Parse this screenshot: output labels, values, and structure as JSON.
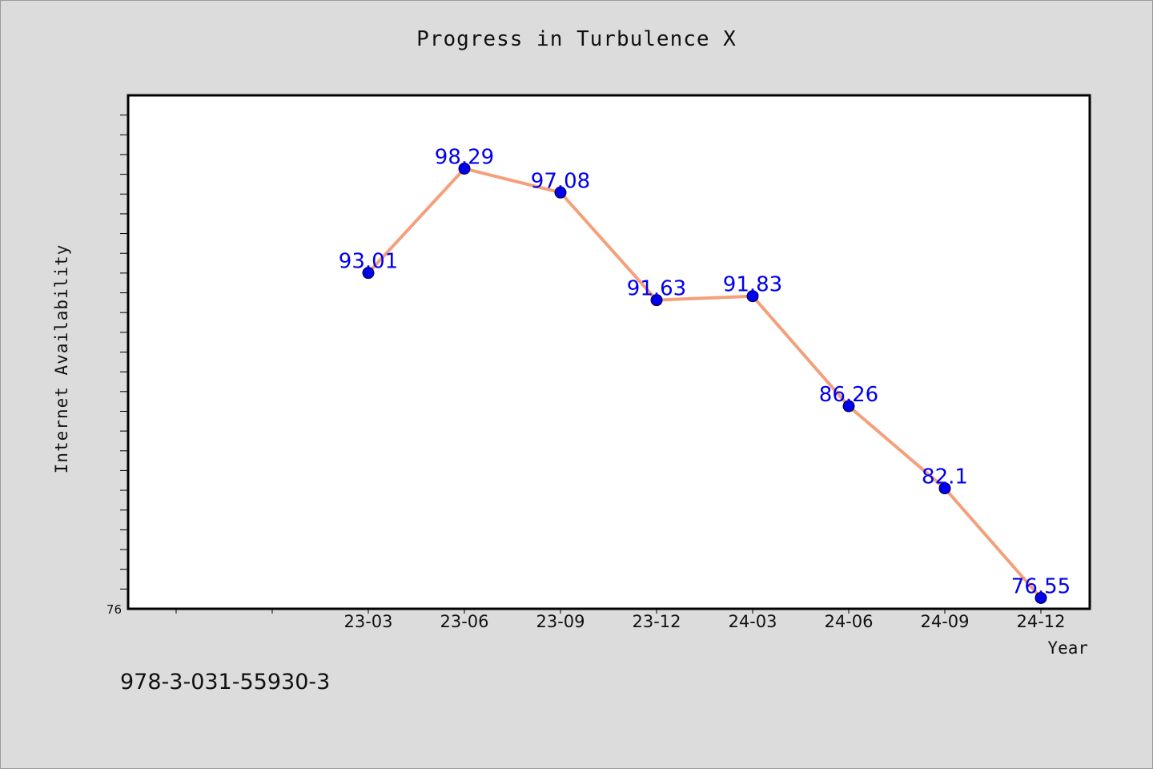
{
  "chart_data": {
    "type": "line",
    "title": "Progress in Turbulence X",
    "xlabel": "Year",
    "ylabel": "Internet Availability",
    "categories": [
      "23-03",
      "23-06",
      "23-09",
      "23-12",
      "24-03",
      "24-06",
      "24-09",
      "24-12"
    ],
    "series": [
      {
        "values": [
          93.01,
          98.29,
          97.08,
          91.63,
          91.83,
          86.26,
          82.1,
          76.55
        ],
        "data_labels": [
          "93.01",
          "98.29",
          "97.08",
          "91.63",
          "91.83",
          "86.26",
          "82.1",
          "76.55"
        ]
      }
    ],
    "ylim": [
      76,
      102
    ],
    "y_tick_labels": [
      "76"
    ],
    "legend": "none",
    "grid": false,
    "colors": {
      "line": "#f4a07a",
      "marker": "#0000ee",
      "data_label": "#0000ee",
      "plot_background": "#ffffff",
      "figure_background": "#dcdcdc"
    }
  },
  "footnote": "978-3-031-55930-3"
}
